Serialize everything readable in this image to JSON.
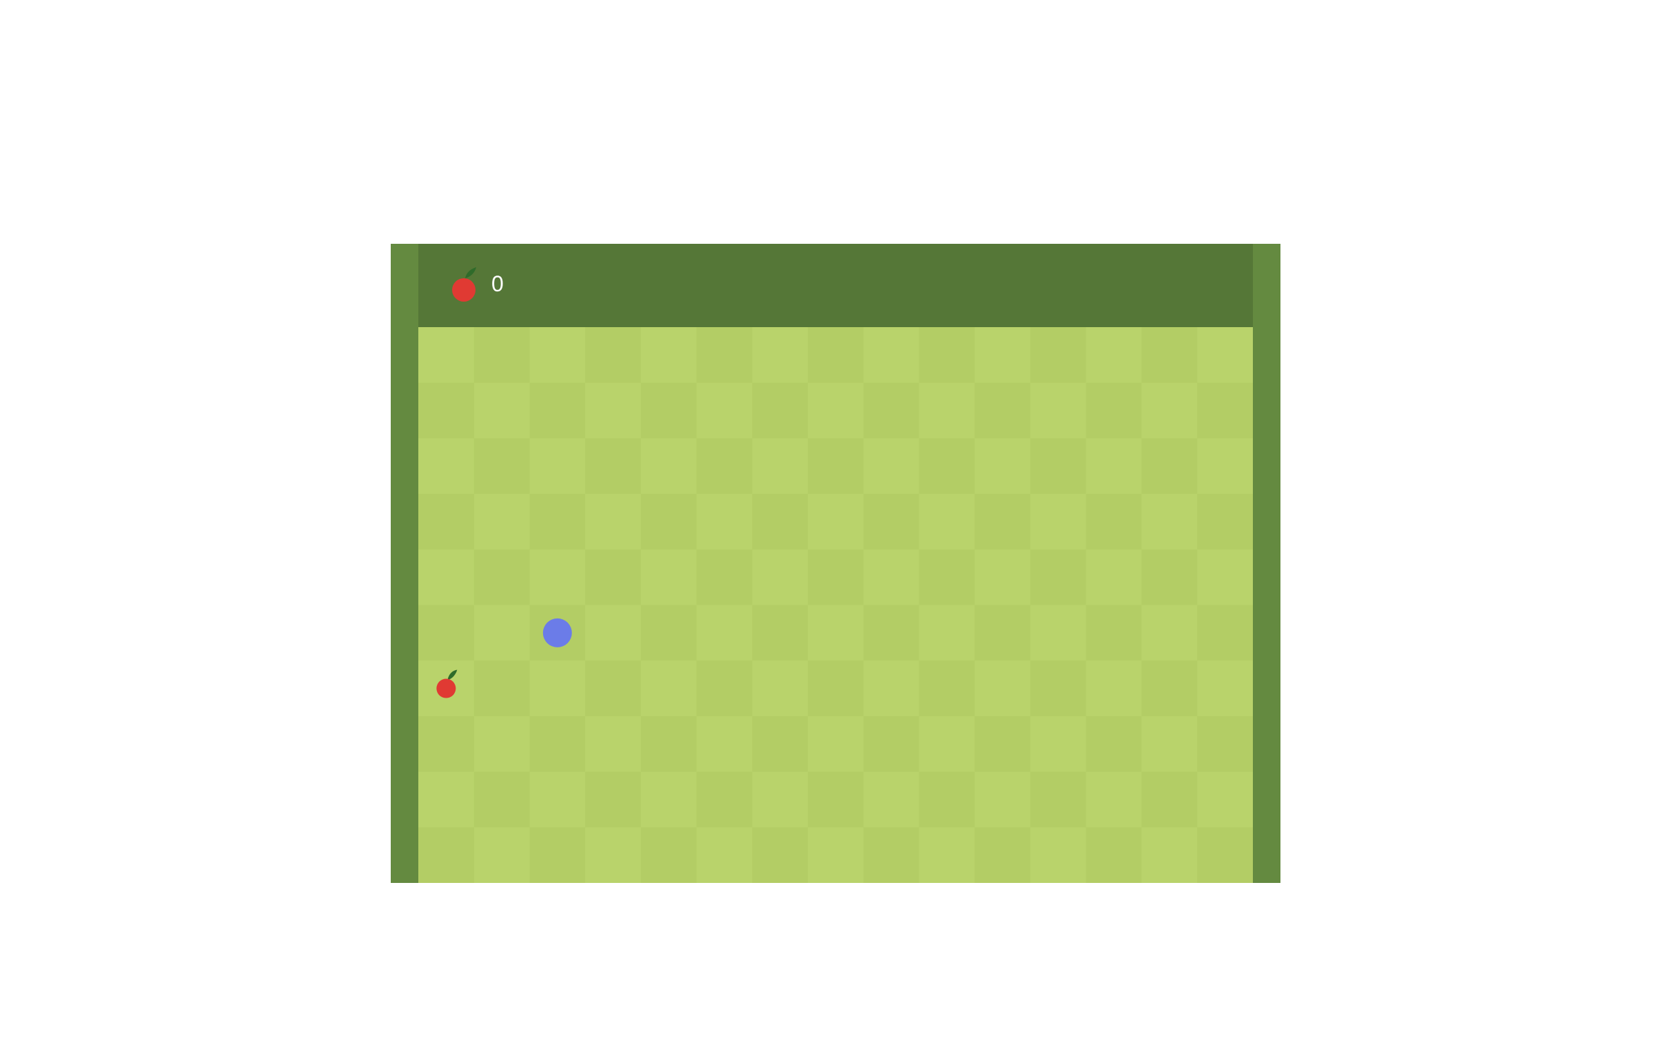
{
  "game": {
    "score": "0",
    "score_icon": "apple-icon",
    "colors": {
      "frame": "#648a40",
      "header": "#557737",
      "board_light": "#b9d36b",
      "board_dark": "#b3cd65",
      "snake": "#6b7ce8",
      "apple": "#e03a33",
      "leaf": "#2f6b2a"
    },
    "board": {
      "columns": 15,
      "rows": 10
    },
    "snake": {
      "head_cell": [
        2,
        5
      ]
    },
    "food": {
      "icon": "apple-icon",
      "cell": [
        0,
        6
      ]
    }
  }
}
